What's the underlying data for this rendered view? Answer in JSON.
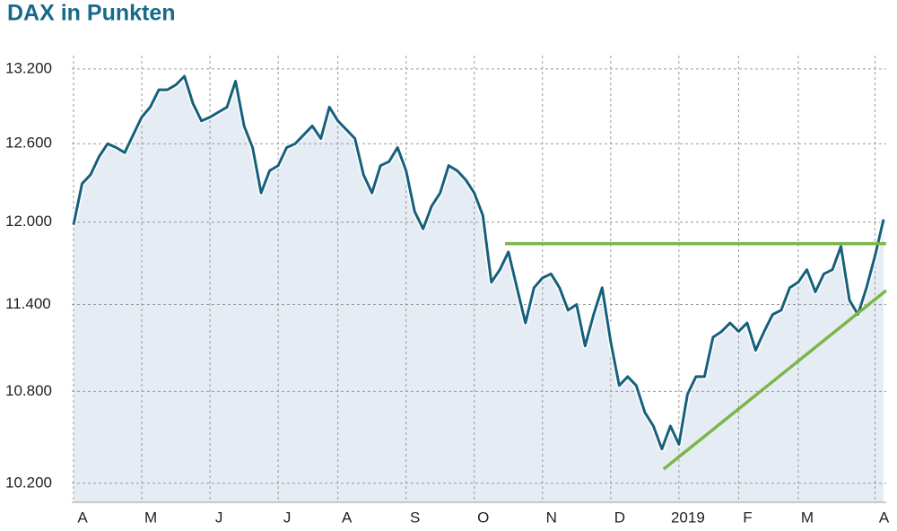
{
  "chart_data": {
    "type": "line",
    "title": "DAX in Punkten",
    "categories": [
      "A",
      null,
      null,
      null,
      null,
      null,
      null,
      null,
      "M",
      null,
      null,
      null,
      null,
      null,
      null,
      null,
      "J",
      null,
      null,
      null,
      null,
      null,
      null,
      null,
      "J",
      null,
      null,
      null,
      null,
      null,
      null,
      "A",
      null,
      null,
      null,
      null,
      null,
      null,
      null,
      "S",
      null,
      null,
      null,
      null,
      null,
      null,
      null,
      "O",
      null,
      null,
      null,
      null,
      null,
      null,
      null,
      "N",
      null,
      null,
      null,
      null,
      null,
      null,
      null,
      "D",
      null,
      null,
      null,
      null,
      null,
      null,
      null,
      "2019",
      null,
      null,
      null,
      null,
      null,
      null,
      "F",
      null,
      null,
      null,
      null,
      null,
      null,
      "M",
      null,
      null,
      null,
      null,
      null,
      null,
      null,
      null,
      "A",
      null
    ],
    "series": [
      {
        "name": "DAX",
        "color": "#17607c",
        "fill": "#e6ecf4",
        "values": [
          11980,
          12290,
          12360,
          12500,
          12600,
          12570,
          12530,
          12670,
          12810,
          12890,
          13030,
          13030,
          13070,
          13140,
          12920,
          12780,
          12810,
          12850,
          12890,
          13100,
          12740,
          12570,
          12220,
          12390,
          12430,
          12570,
          12600,
          12670,
          12740,
          12640,
          12890,
          12780,
          12710,
          12640,
          12360,
          12220,
          12430,
          12460,
          12570,
          12390,
          12080,
          11950,
          12120,
          12220,
          12430,
          12390,
          12320,
          12220,
          12050,
          11560,
          11650,
          11780,
          11520,
          11270,
          11520,
          11590,
          11620,
          11520,
          11360,
          11400,
          11110,
          11330,
          11520,
          11140,
          10840,
          10900,
          10840,
          10660,
          10570,
          10420,
          10570,
          10450,
          10780,
          10900,
          10900,
          11170,
          11210,
          11270,
          11210,
          11270,
          11080,
          11210,
          11330,
          11360,
          11520,
          11560,
          11650,
          11490,
          11620,
          11650,
          11820,
          11430,
          11330,
          11520,
          11750,
          12020
        ]
      }
    ],
    "trendlines": [
      {
        "color": "#7ab648",
        "x": [
          50.6,
          95.3
        ],
        "values": [
          11840,
          11840
        ]
      },
      {
        "color": "#7ab648",
        "x": [
          69.2,
          95.3
        ],
        "values": [
          10290,
          11500
        ]
      }
    ],
    "ylim": [
      10080,
      13310
    ],
    "log_y": true,
    "yticks": [
      {
        "value": 10200,
        "label": "10.200"
      },
      {
        "value": 10800,
        "label": "10.800"
      },
      {
        "value": 11400,
        "label": "11.400"
      },
      {
        "value": 12000,
        "label": "12.000"
      },
      {
        "value": 12600,
        "label": "12.600"
      },
      {
        "value": 13200,
        "label": "13.200"
      }
    ],
    "grid": true
  }
}
